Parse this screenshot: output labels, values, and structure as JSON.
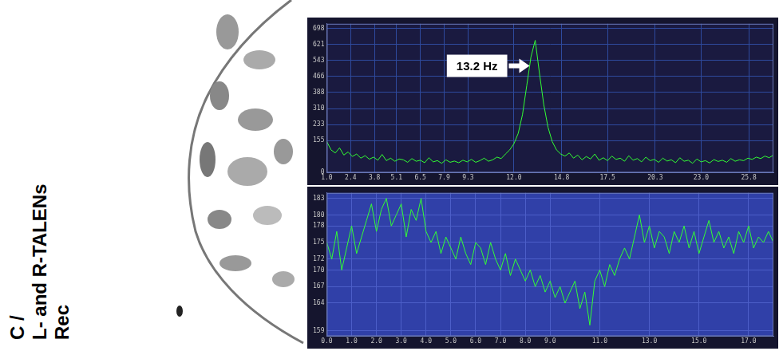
{
  "panel": {
    "letter": "C /",
    "lines": [
      "L- and R-TALENs",
      "Rec"
    ]
  },
  "chart_data": [
    {
      "type": "line",
      "color": "#33ff33",
      "marker": "none",
      "line_style": "solid",
      "grid": true,
      "annotations": [
        {
          "text": "13.2 Hz",
          "x": 13.2
        }
      ],
      "x": [
        1,
        1.25,
        1.5,
        1.75,
        2,
        2.25,
        2.5,
        2.75,
        3,
        3.25,
        3.5,
        3.75,
        4,
        4.25,
        4.5,
        4.75,
        5,
        5.25,
        5.5,
        5.75,
        6,
        6.25,
        6.5,
        6.75,
        7,
        7.25,
        7.5,
        7.75,
        8,
        8.25,
        8.5,
        8.75,
        9,
        9.25,
        9.5,
        9.75,
        10,
        10.25,
        10.5,
        10.75,
        11,
        11.25,
        11.5,
        11.75,
        12,
        12.25,
        12.5,
        12.75,
        13,
        13.25,
        13.5,
        13.75,
        14,
        14.25,
        14.5,
        14.75,
        15,
        15.25,
        15.5,
        15.75,
        16,
        16.25,
        16.5,
        16.75,
        17,
        17.25,
        17.5,
        17.75,
        18,
        18.25,
        18.5,
        18.75,
        19,
        19.25,
        19.5,
        19.75,
        20,
        20.25,
        20.5,
        20.75,
        21,
        21.25,
        21.5,
        21.75,
        22,
        22.25,
        22.5,
        22.75,
        23,
        23.25,
        23.5,
        23.75,
        24,
        24.25,
        24.5,
        24.75,
        25,
        25.25,
        25.5,
        25.75,
        26,
        26.25,
        26.5,
        26.75,
        27,
        27.25
      ],
      "values": [
        150,
        110,
        95,
        120,
        85,
        100,
        78,
        90,
        70,
        82,
        65,
        75,
        60,
        88,
        58,
        70,
        55,
        66,
        62,
        50,
        68,
        55,
        60,
        48,
        72,
        52,
        58,
        45,
        62,
        50,
        56,
        48,
        60,
        52,
        64,
        50,
        58,
        70,
        55,
        62,
        75,
        68,
        90,
        110,
        140,
        190,
        280,
        420,
        560,
        640,
        480,
        330,
        220,
        150,
        110,
        90,
        80,
        95,
        70,
        85,
        62,
        78,
        66,
        90,
        60,
        72,
        58,
        80,
        64,
        70,
        55,
        82,
        60,
        68,
        52,
        75,
        58,
        64,
        50,
        70,
        56,
        62,
        48,
        72,
        55,
        60,
        45,
        66,
        52,
        58,
        47,
        63,
        54,
        60,
        50,
        68,
        55,
        62,
        58,
        70,
        64,
        75,
        68,
        80,
        72,
        85
      ],
      "xlim": [
        1,
        27.25
      ],
      "xticks": [
        {
          "value": 1,
          "label": "1.0"
        },
        2.4,
        3.8,
        5.1,
        6.5,
        7.9,
        9.3,
        {
          "value": 12,
          "label": "12.0"
        },
        14.8,
        17.5,
        20.3,
        {
          "value": 23,
          "label": "23.0"
        },
        25.8
      ],
      "ylim": [
        0,
        720
      ],
      "yticks": [
        0,
        155,
        233,
        310,
        388,
        466,
        543,
        621,
        698
      ]
    },
    {
      "type": "line",
      "color": "#33ff33",
      "marker": "none",
      "line_style": "solid",
      "grid": true,
      "x": [
        0,
        0.2,
        0.4,
        0.6,
        0.8,
        1,
        1.2,
        1.4,
        1.6,
        1.8,
        2,
        2.2,
        2.4,
        2.6,
        2.8,
        3,
        3.2,
        3.4,
        3.6,
        3.8,
        4,
        4.2,
        4.4,
        4.6,
        4.8,
        5,
        5.2,
        5.4,
        5.6,
        5.8,
        6,
        6.2,
        6.4,
        6.6,
        6.8,
        7,
        7.2,
        7.4,
        7.6,
        7.8,
        8,
        8.2,
        8.4,
        8.6,
        8.8,
        9,
        9.2,
        9.4,
        9.6,
        9.8,
        10,
        10.2,
        10.4,
        10.6,
        10.8,
        11,
        11.2,
        11.4,
        11.6,
        11.8,
        12,
        12.2,
        12.4,
        12.6,
        12.8,
        13,
        13.2,
        13.4,
        13.6,
        13.8,
        14,
        14.2,
        14.4,
        14.6,
        14.8,
        15,
        15.2,
        15.4,
        15.6,
        15.8,
        16,
        16.2,
        16.4,
        16.6,
        16.8,
        17,
        17.2,
        17.4,
        17.6,
        17.8,
        18
      ],
      "values": [
        175,
        172,
        177,
        170,
        174,
        178,
        173,
        176,
        179,
        182,
        177,
        181,
        183,
        178,
        180,
        182,
        176,
        181,
        179,
        183,
        177,
        175,
        177,
        173,
        176,
        174,
        172,
        176,
        173,
        171,
        175,
        174,
        171,
        175,
        172,
        170,
        173,
        169,
        172,
        170,
        168,
        170,
        167,
        169,
        166,
        168,
        165,
        167,
        164,
        166,
        168,
        163,
        166,
        160,
        168,
        170,
        167,
        171,
        169,
        172,
        174,
        172,
        176,
        180,
        175,
        178,
        174,
        177,
        176,
        173,
        177,
        175,
        178,
        174,
        177,
        173,
        176,
        179,
        175,
        177,
        174,
        176,
        173,
        177,
        175,
        178,
        174,
        176,
        175,
        177,
        175
      ],
      "xlim": [
        0,
        18
      ],
      "xticks": [
        {
          "value": 0,
          "label": "0.0"
        },
        {
          "value": 1,
          "label": "1.0"
        },
        {
          "value": 2,
          "label": "2.0"
        },
        {
          "value": 3,
          "label": "3.0"
        },
        {
          "value": 4,
          "label": "4.0"
        },
        {
          "value": 5,
          "label": "5.0"
        },
        {
          "value": 6,
          "label": "6.0"
        },
        {
          "value": 7,
          "label": "7.0"
        },
        {
          "value": 8,
          "label": "8.0"
        },
        {
          "value": 9,
          "label": "9.0"
        },
        {
          "value": 11,
          "label": "11.0"
        },
        {
          "value": 13,
          "label": "13.0"
        },
        {
          "value": 15,
          "label": "15.0"
        },
        {
          "value": 17,
          "label": "17.0"
        }
      ],
      "ylim": [
        158,
        184
      ],
      "yticks": [
        159,
        164,
        167,
        170,
        172,
        175,
        178,
        180,
        183
      ]
    }
  ]
}
